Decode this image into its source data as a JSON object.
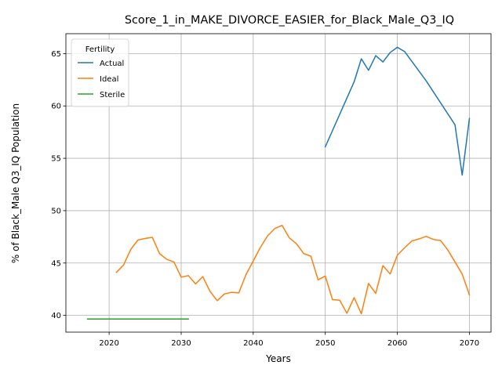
{
  "chart_data": {
    "type": "line",
    "title": "Score_1_in_MAKE_DIVORCE_EASIER_for_Black_Male_Q3_IQ",
    "xlabel": "Years",
    "ylabel": "% of Black_Male Q3_IQ Population",
    "xlim": [
      2014,
      2073
    ],
    "ylim": [
      38.4,
      66.9
    ],
    "xticks": [
      2020,
      2030,
      2040,
      2050,
      2060,
      2070
    ],
    "yticks": [
      40,
      45,
      50,
      55,
      60,
      65
    ],
    "grid": true,
    "legend": {
      "title": "Fertility",
      "placement": "top-left"
    },
    "series": [
      {
        "name": "Actual",
        "color": "#1f77b4",
        "x": [
          2050,
          2054,
          2055,
          2056,
          2057,
          2058,
          2059,
          2060,
          2061,
          2064,
          2068,
          2069,
          2070
        ],
        "y": [
          56.1,
          62.3,
          64.5,
          63.4,
          64.8,
          64.2,
          65.1,
          65.6,
          65.2,
          62.4,
          58.2,
          53.4,
          58.8
        ]
      },
      {
        "name": "Ideal",
        "color": "#ff7f0e",
        "x": [
          2021,
          2022,
          2023,
          2024,
          2025,
          2026,
          2027,
          2028,
          2029,
          2030,
          2031,
          2032,
          2033,
          2034,
          2035,
          2036,
          2037,
          2038,
          2039,
          2040,
          2041,
          2042,
          2043,
          2044,
          2045,
          2046,
          2047,
          2048,
          2049,
          2050,
          2051,
          2052,
          2053,
          2054,
          2055,
          2056,
          2057,
          2058,
          2059,
          2060,
          2061,
          2062,
          2063,
          2064,
          2065,
          2066,
          2067,
          2068,
          2069,
          2070
        ],
        "y": [
          44.1,
          44.8,
          46.3,
          47.2,
          47.35,
          47.45,
          45.9,
          45.35,
          45.1,
          43.65,
          43.8,
          43.0,
          43.7,
          42.3,
          41.4,
          42.05,
          42.2,
          42.15,
          43.9,
          45.2,
          46.5,
          47.6,
          48.3,
          48.6,
          47.4,
          46.85,
          45.9,
          45.65,
          43.4,
          43.75,
          41.5,
          41.45,
          40.2,
          41.7,
          40.15,
          43.05,
          42.1,
          44.75,
          43.95,
          45.75,
          46.45,
          47.1,
          47.3,
          47.55,
          47.25,
          47.15,
          46.25,
          45.1,
          43.95,
          41.95
        ]
      },
      {
        "name": "Sterile",
        "color": "#2ca02c",
        "x": [
          2017,
          2031
        ],
        "y": [
          39.65,
          39.65
        ]
      }
    ]
  }
}
